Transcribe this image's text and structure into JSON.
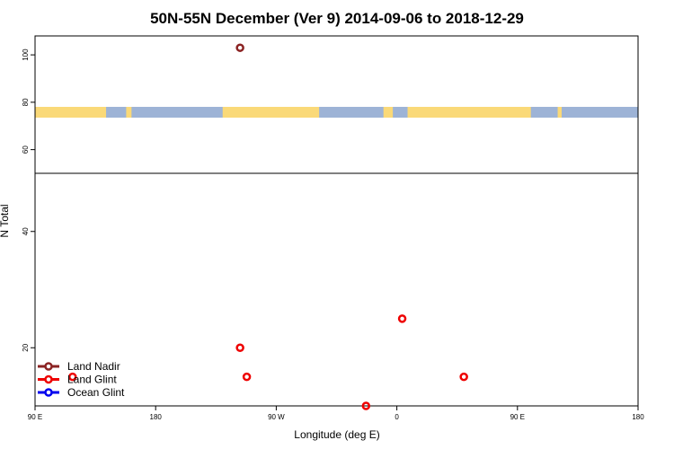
{
  "chart_data": {
    "type": "scatter",
    "title": "50N-55N December (Ver 9)   2014-09-06 to 2018-12-29",
    "xlabel": "Longitude (deg E)",
    "ylabel": "N Total",
    "x_ticks": [
      {
        "value": 90,
        "label": "90 E"
      },
      {
        "value": 180,
        "label": "180"
      },
      {
        "value": 270,
        "label": "90 W"
      },
      {
        "value": 360,
        "label": "0"
      },
      {
        "value": 450,
        "label": "90 E"
      },
      {
        "value": 540,
        "label": "180"
      }
    ],
    "xlim": [
      90,
      540
    ],
    "lower_panel": {
      "ylim": [
        10,
        50
      ],
      "y_ticks": [
        20,
        40
      ],
      "series": [
        {
          "name": "Land Glint",
          "color": "#ee0000",
          "points": [
            [
              118,
              15
            ],
            [
              248,
              15
            ],
            [
              243,
              20
            ],
            [
              337,
              10
            ],
            [
              364,
              25
            ],
            [
              410,
              15
            ]
          ]
        }
      ]
    },
    "upper_panel": {
      "ylim": [
        50,
        108
      ],
      "y_ticks": [
        60,
        80,
        100
      ],
      "series": [
        {
          "name": "Land Nadir",
          "color": "#8b2323",
          "points": [
            [
              243,
              103
            ]
          ]
        }
      ]
    },
    "map_strip": {
      "ocean_color": "#9db3d6",
      "land_color": "#fad978",
      "land_ranges": [
        [
          90,
          143
        ],
        [
          158,
          162
        ],
        [
          230,
          302
        ],
        [
          350,
          357
        ],
        [
          368,
          460
        ],
        [
          480,
          483
        ]
      ]
    },
    "legend": {
      "placement": "bottom-left",
      "items": [
        {
          "label": "Land Nadir",
          "color": "#8b2323"
        },
        {
          "label": "Land Glint",
          "color": "#ee0000"
        },
        {
          "label": "Ocean Glint",
          "color": "#0000ee"
        }
      ]
    }
  }
}
